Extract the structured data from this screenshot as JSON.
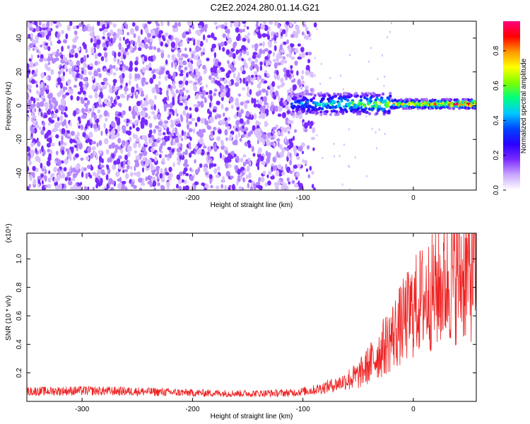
{
  "title": "C2E2.2024.280.01.14.G21",
  "chart_data": [
    {
      "type": "heatmap",
      "xlabel": "Height of straight line (km)",
      "ylabel": "Frequency (Hz)",
      "xlim": [
        -350,
        57
      ],
      "ylim": [
        -50,
        50
      ],
      "xticks": [
        -300,
        -200,
        -100,
        0
      ],
      "yticks": [
        -40,
        -20,
        0,
        20,
        40
      ],
      "colorbar": {
        "label": "Normalized spectral amplitude",
        "range": [
          0,
          0.97
        ],
        "ticks": [
          "0.0",
          "0.2",
          "0.4",
          "0.6",
          "0.8"
        ],
        "tick_values": [
          0.0,
          0.2,
          0.4,
          0.6,
          0.8
        ],
        "colors": [
          "#ffffff",
          "#c9a6ff",
          "#7b2bff",
          "#2a00ff",
          "#0044ff",
          "#00c8ff",
          "#00ff80",
          "#7fff00",
          "#ffff00",
          "#ff9900",
          "#ff0000",
          "#ff0080"
        ]
      },
      "regions": [
        {
          "name": "scattered noise",
          "x_range": [
            -350,
            -85
          ],
          "freq_range": [
            -50,
            50
          ],
          "amplitude": 0.1
        },
        {
          "name": "signal band",
          "x_range": [
            -110,
            57
          ],
          "freq_center": 1,
          "freq_halfwidth": 4,
          "amplitude_start": 0.3,
          "amplitude_end": 0.95
        }
      ]
    },
    {
      "type": "line",
      "xlabel": "Height of straight line (km)",
      "ylabel": "SNR (10 * v/v)",
      "y_multiplier": "(x10⁴)",
      "xlim": [
        -350,
        57
      ],
      "ylim": [
        0,
        1.18
      ],
      "xticks": [
        -300,
        -200,
        -100,
        0
      ],
      "yticks": [
        "0.2",
        "0.4",
        "0.6",
        "0.8",
        "1.0"
      ],
      "ytick_values": [
        0.2,
        0.4,
        0.6,
        0.8,
        1.0
      ],
      "color": "#ee2222",
      "x": [
        -350,
        -300,
        -250,
        -200,
        -150,
        -110,
        -90,
        -70,
        -50,
        -35,
        -25,
        -15,
        -5,
        5,
        20,
        35,
        50,
        57
      ],
      "y": [
        0.07,
        0.075,
        0.07,
        0.06,
        0.055,
        0.06,
        0.08,
        0.12,
        0.18,
        0.3,
        0.4,
        0.5,
        0.6,
        0.7,
        0.78,
        0.86,
        0.9,
        0.9
      ]
    }
  ]
}
